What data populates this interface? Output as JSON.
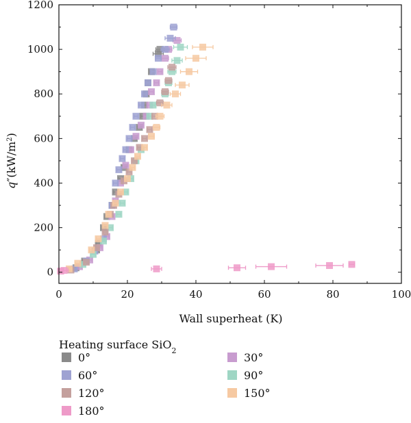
{
  "chart_data": {
    "type": "scatter",
    "xlabel": "Wall superheat (K)",
    "ylabel": {
      "base": "q",
      "prime": "″",
      "unit_prefix": "(kW/m",
      "unit_exp": "2",
      "unit_suffix": ")"
    },
    "xlim": [
      0,
      100
    ],
    "ylim": [
      -50,
      1200
    ],
    "x_ticks": [
      0,
      20,
      40,
      60,
      80,
      100
    ],
    "y_ticks": [
      0,
      200,
      400,
      600,
      800,
      1000,
      1200
    ],
    "x_tick_labels": [
      "0",
      "20",
      "40",
      "60",
      "80",
      "100"
    ],
    "y_tick_labels": [
      "0",
      "200",
      "400",
      "600",
      "800",
      "1000",
      "1200"
    ],
    "grid": false,
    "legend": {
      "title_prefix": "Heating surface SiO",
      "title_sub": "2",
      "placement": "bottom",
      "columns": 2
    },
    "series": [
      {
        "name": "0°",
        "color": "#8a8a8a",
        "points": [
          {
            "x": 5,
            "y": 20,
            "xerr": 0.6
          },
          {
            "x": 7.5,
            "y": 50,
            "xerr": 0.6
          },
          {
            "x": 11,
            "y": 100,
            "xerr": 0.6
          },
          {
            "x": 11.5,
            "y": 130,
            "xerr": 0.6
          },
          {
            "x": 13,
            "y": 200,
            "xerr": 0.6
          },
          {
            "x": 14,
            "y": 250,
            "xerr": 0.6
          },
          {
            "x": 15.5,
            "y": 300,
            "xerr": 0.6
          },
          {
            "x": 16.5,
            "y": 360,
            "xerr": 0.6
          },
          {
            "x": 18,
            "y": 420,
            "xerr": 0.6
          },
          {
            "x": 19,
            "y": 470,
            "xerr": 0.6
          },
          {
            "x": 20.5,
            "y": 550,
            "xerr": 0.6
          },
          {
            "x": 22,
            "y": 600,
            "xerr": 0.6
          },
          {
            "x": 23.5,
            "y": 650,
            "xerr": 0.6
          },
          {
            "x": 24.5,
            "y": 700,
            "xerr": 0.6
          },
          {
            "x": 25,
            "y": 750,
            "xerr": 0.6
          },
          {
            "x": 25.5,
            "y": 800,
            "xerr": 0.6
          },
          {
            "x": 26,
            "y": 850,
            "xerr": 0.6
          },
          {
            "x": 27,
            "y": 900,
            "xerr": 0.6
          },
          {
            "x": 29,
            "y": 980,
            "xerr": 1.5
          },
          {
            "x": 29.5,
            "y": 1000,
            "xerr": 1.2
          }
        ]
      },
      {
        "name": "30°",
        "color": "#c89ccf",
        "points": [
          {
            "x": 6,
            "y": 25,
            "xerr": 0.6
          },
          {
            "x": 9,
            "y": 55,
            "xerr": 0.6
          },
          {
            "x": 12,
            "y": 110,
            "xerr": 0.6
          },
          {
            "x": 14,
            "y": 160,
            "xerr": 0.6
          },
          {
            "x": 15.5,
            "y": 250,
            "xerr": 0.6
          },
          {
            "x": 16.5,
            "y": 320,
            "xerr": 0.6
          },
          {
            "x": 18,
            "y": 400,
            "xerr": 0.6
          },
          {
            "x": 19.5,
            "y": 480,
            "xerr": 0.6
          },
          {
            "x": 21,
            "y": 550,
            "xerr": 0.6
          },
          {
            "x": 22.5,
            "y": 610,
            "xerr": 0.6
          },
          {
            "x": 24,
            "y": 660,
            "xerr": 0.6
          },
          {
            "x": 25.5,
            "y": 700,
            "xerr": 0.6
          },
          {
            "x": 26.5,
            "y": 750,
            "xerr": 0.6
          },
          {
            "x": 27,
            "y": 810,
            "xerr": 0.6
          },
          {
            "x": 28.5,
            "y": 850,
            "xerr": 0.6
          },
          {
            "x": 29.5,
            "y": 900,
            "xerr": 0.6
          },
          {
            "x": 31,
            "y": 960,
            "xerr": 1.0
          },
          {
            "x": 32,
            "y": 1000,
            "xerr": 1.0
          },
          {
            "x": 34.5,
            "y": 1040,
            "xerr": 1.2
          }
        ]
      },
      {
        "name": "60°",
        "color": "#9ea2d2",
        "points": [
          {
            "x": 4.5,
            "y": 15,
            "xerr": 0.6
          },
          {
            "x": 8,
            "y": 50,
            "xerr": 0.6
          },
          {
            "x": 10.5,
            "y": 95,
            "xerr": 0.6
          },
          {
            "x": 13,
            "y": 150,
            "xerr": 0.6
          },
          {
            "x": 15.5,
            "y": 300,
            "xerr": 0.6
          },
          {
            "x": 16.5,
            "y": 400,
            "xerr": 0.6
          },
          {
            "x": 17.5,
            "y": 460,
            "xerr": 0.6
          },
          {
            "x": 18.5,
            "y": 510,
            "xerr": 0.6
          },
          {
            "x": 19.5,
            "y": 550,
            "xerr": 0.6
          },
          {
            "x": 20.5,
            "y": 600,
            "xerr": 0.6
          },
          {
            "x": 21.5,
            "y": 650,
            "xerr": 0.6
          },
          {
            "x": 22.5,
            "y": 700,
            "xerr": 0.6
          },
          {
            "x": 24,
            "y": 750,
            "xerr": 0.6
          },
          {
            "x": 25,
            "y": 800,
            "xerr": 0.6
          },
          {
            "x": 26,
            "y": 850,
            "xerr": 0.6
          },
          {
            "x": 27.5,
            "y": 900,
            "xerr": 0.6
          },
          {
            "x": 29,
            "y": 960,
            "xerr": 0.8
          },
          {
            "x": 31,
            "y": 1000,
            "xerr": 1.2
          },
          {
            "x": 32.5,
            "y": 1050,
            "xerr": 1.5
          },
          {
            "x": 33.5,
            "y": 1100,
            "xerr": 1.0
          }
        ]
      },
      {
        "name": "90°",
        "color": "#9fd6c4",
        "points": [
          {
            "x": 7,
            "y": 35,
            "xerr": 0.6
          },
          {
            "x": 10,
            "y": 80,
            "xerr": 0.6
          },
          {
            "x": 13,
            "y": 140,
            "xerr": 0.6
          },
          {
            "x": 15,
            "y": 200,
            "xerr": 0.6
          },
          {
            "x": 17.5,
            "y": 260,
            "xerr": 0.6
          },
          {
            "x": 18.5,
            "y": 310,
            "xerr": 0.6
          },
          {
            "x": 19.5,
            "y": 360,
            "xerr": 0.6
          },
          {
            "x": 21,
            "y": 420,
            "xerr": 0.6
          },
          {
            "x": 22.5,
            "y": 500,
            "xerr": 0.6
          },
          {
            "x": 24,
            "y": 550,
            "xerr": 0.6
          },
          {
            "x": 26.5,
            "y": 700,
            "xerr": 0.6
          },
          {
            "x": 27.5,
            "y": 750,
            "xerr": 0.6
          },
          {
            "x": 31,
            "y": 800,
            "xerr": 1.0
          },
          {
            "x": 32,
            "y": 850,
            "xerr": 1.0
          },
          {
            "x": 33,
            "y": 900,
            "xerr": 1.2
          },
          {
            "x": 34.5,
            "y": 950,
            "xerr": 1.5
          },
          {
            "x": 35.5,
            "y": 1010,
            "xerr": 2.0
          }
        ]
      },
      {
        "name": "120°",
        "color": "#c4a09d",
        "points": [
          {
            "x": 3.5,
            "y": 10,
            "xerr": 0.6
          },
          {
            "x": 8,
            "y": 45,
            "xerr": 0.6
          },
          {
            "x": 11,
            "y": 110,
            "xerr": 0.6
          },
          {
            "x": 13.5,
            "y": 180,
            "xerr": 0.6
          },
          {
            "x": 15,
            "y": 260,
            "xerr": 0.6
          },
          {
            "x": 16,
            "y": 300,
            "xerr": 0.6
          },
          {
            "x": 17.5,
            "y": 350,
            "xerr": 0.6
          },
          {
            "x": 19,
            "y": 410,
            "xerr": 0.6
          },
          {
            "x": 20.5,
            "y": 450,
            "xerr": 0.6
          },
          {
            "x": 22,
            "y": 500,
            "xerr": 0.6
          },
          {
            "x": 23.5,
            "y": 560,
            "xerr": 0.6
          },
          {
            "x": 25,
            "y": 600,
            "xerr": 0.6
          },
          {
            "x": 26.5,
            "y": 640,
            "xerr": 0.6
          },
          {
            "x": 28,
            "y": 700,
            "xerr": 0.8
          },
          {
            "x": 29.5,
            "y": 760,
            "xerr": 1.0
          },
          {
            "x": 31,
            "y": 810,
            "xerr": 1.0
          },
          {
            "x": 32,
            "y": 860,
            "xerr": 1.0
          },
          {
            "x": 33,
            "y": 920,
            "xerr": 1.2
          }
        ]
      },
      {
        "name": "150°",
        "color": "#f6c9a2",
        "points": [
          {
            "x": 3,
            "y": 15,
            "xerr": 0.6
          },
          {
            "x": 5.5,
            "y": 40,
            "xerr": 0.8
          },
          {
            "x": 9.5,
            "y": 100,
            "xerr": 0.6
          },
          {
            "x": 11.5,
            "y": 150,
            "xerr": 0.6
          },
          {
            "x": 13.5,
            "y": 210,
            "xerr": 0.6
          },
          {
            "x": 14.5,
            "y": 260,
            "xerr": 0.6
          },
          {
            "x": 16.5,
            "y": 310,
            "xerr": 0.6
          },
          {
            "x": 18,
            "y": 360,
            "xerr": 0.6
          },
          {
            "x": 20,
            "y": 420,
            "xerr": 0.6
          },
          {
            "x": 21.5,
            "y": 470,
            "xerr": 0.6
          },
          {
            "x": 23,
            "y": 520,
            "xerr": 0.6
          },
          {
            "x": 25,
            "y": 560,
            "xerr": 0.6
          },
          {
            "x": 27,
            "y": 610,
            "xerr": 0.8
          },
          {
            "x": 28.5,
            "y": 650,
            "xerr": 1.0
          },
          {
            "x": 29.5,
            "y": 700,
            "xerr": 1.2
          },
          {
            "x": 31.5,
            "y": 750,
            "xerr": 1.5
          },
          {
            "x": 34,
            "y": 800,
            "xerr": 1.5
          },
          {
            "x": 36,
            "y": 840,
            "xerr": 2.0
          },
          {
            "x": 38,
            "y": 900,
            "xerr": 2.5
          },
          {
            "x": 40,
            "y": 960,
            "xerr": 3.0
          },
          {
            "x": 42,
            "y": 1010,
            "xerr": 3.0
          }
        ]
      },
      {
        "name": "180°",
        "color": "#ee9ac8",
        "points": [
          {
            "x": 0.5,
            "y": 5,
            "xerr": 0.8
          },
          {
            "x": 1.5,
            "y": 8,
            "xerr": 1.2
          },
          {
            "x": 28.5,
            "y": 15,
            "xerr": 1.5
          },
          {
            "x": 52,
            "y": 20,
            "xerr": 2.5
          },
          {
            "x": 62,
            "y": 25,
            "xerr": 4.5
          },
          {
            "x": 79,
            "y": 30,
            "xerr": 4.0
          },
          {
            "x": 85.5,
            "y": 35,
            "xerr": 0.8
          }
        ]
      }
    ]
  }
}
